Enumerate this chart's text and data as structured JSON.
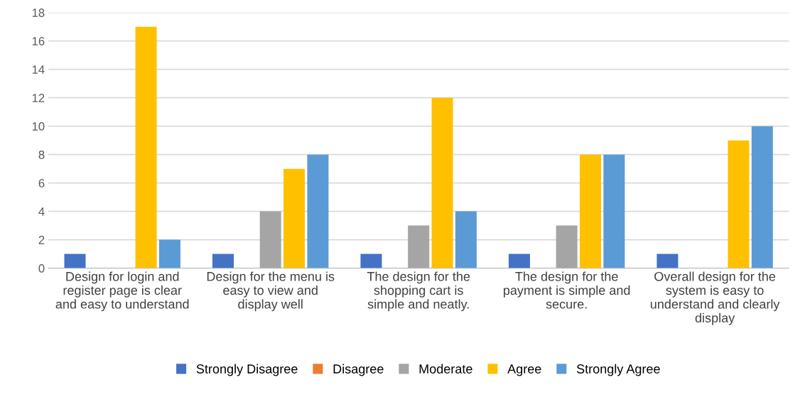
{
  "chart_data": {
    "type": "bar",
    "categories": [
      "Design for login and register page is clear and easy to understand",
      "Design for the menu is easy to view and display well",
      "The design for the shopping cart is simple and neatly.",
      "The design for the payment is simple and secure.",
      "Overall design for the system is easy to understand and clearly display"
    ],
    "series": [
      {
        "name": "Strongly Disagree",
        "color": "#4472c4",
        "values": [
          1,
          1,
          1,
          1,
          1
        ]
      },
      {
        "name": "Disagree",
        "color": "#ed7d31",
        "values": [
          0,
          0,
          0,
          0,
          0
        ]
      },
      {
        "name": "Moderate",
        "color": "#a5a5a5",
        "values": [
          0,
          4,
          3,
          3,
          0
        ]
      },
      {
        "name": "Agree",
        "color": "#ffc000",
        "values": [
          17,
          7,
          12,
          8,
          9
        ]
      },
      {
        "name": "Strongly Agree",
        "color": "#5b9bd5",
        "values": [
          2,
          8,
          4,
          8,
          10
        ]
      }
    ],
    "ylim": [
      0,
      18
    ],
    "yticks": [
      0,
      2,
      4,
      6,
      8,
      10,
      12,
      14,
      16,
      18
    ],
    "grid": "y",
    "legend": "bottom"
  }
}
